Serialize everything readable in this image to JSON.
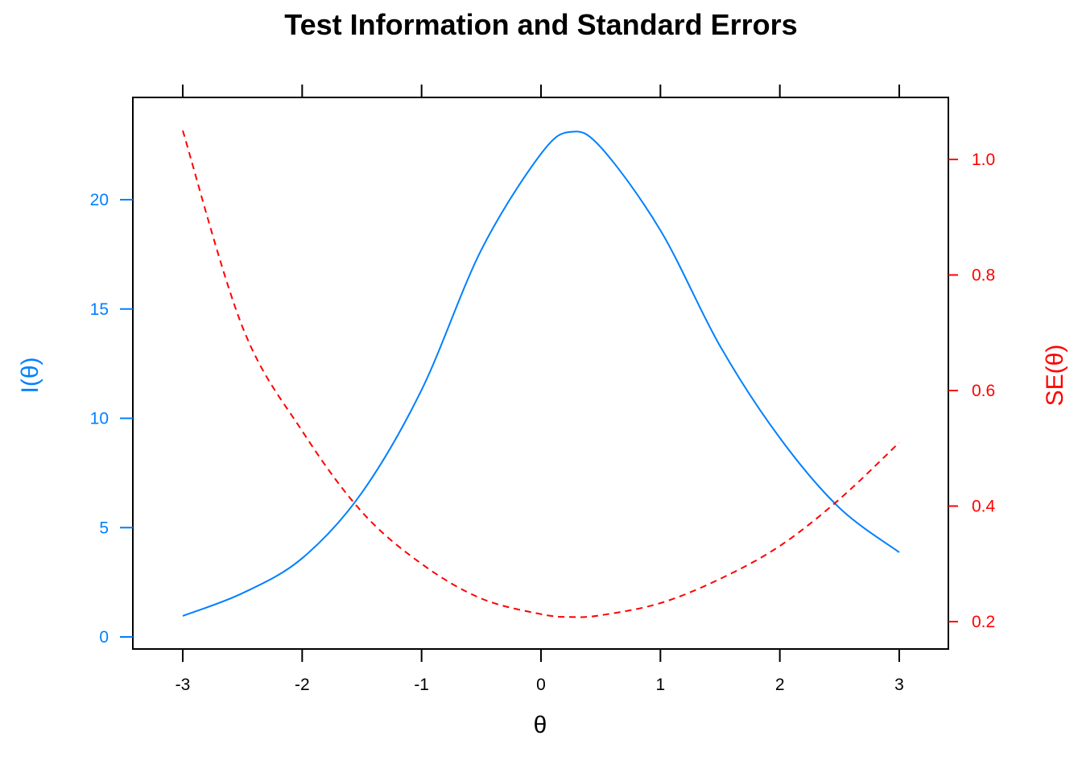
{
  "chart_data": {
    "type": "line",
    "title": "Test Information and Standard Errors",
    "xlabel": "θ",
    "ylabel_left": "I(θ)",
    "ylabel_right": "SE(θ)",
    "xlim": [
      -3.4,
      3.4
    ],
    "ylim_left": [
      -0.6,
      24.6
    ],
    "ylim_right": [
      0.15,
      1.115
    ],
    "x_ticks": [
      "-3",
      "-2",
      "-1",
      "0",
      "1",
      "2",
      "3"
    ],
    "y_left_ticks": [
      "0",
      "5",
      "10",
      "15",
      "20"
    ],
    "y_right_ticks": [
      "0.2",
      "0.4",
      "0.6",
      "0.8",
      "1.0"
    ],
    "grid": false,
    "legend": "none",
    "x": [
      -3,
      -2.5,
      -2,
      -1.5,
      -1,
      -0.5,
      0,
      0.25,
      0.5,
      1,
      1.5,
      2,
      2.5,
      3
    ],
    "series": [
      {
        "name": "I(θ)",
        "axis": "left",
        "color": "#0080FF",
        "style": "solid",
        "values": [
          0.96,
          2.0,
          3.6,
          6.6,
          11.3,
          17.7,
          22.1,
          23.1,
          22.4,
          18.6,
          13.3,
          9.1,
          5.9,
          3.87
        ]
      },
      {
        "name": "SE(θ)",
        "axis": "right",
        "color": "#FF0000",
        "style": "dashed",
        "values": [
          1.05,
          0.71,
          0.53,
          0.39,
          0.3,
          0.24,
          0.213,
          0.208,
          0.211,
          0.232,
          0.274,
          0.331,
          0.412,
          0.51
        ]
      }
    ]
  }
}
